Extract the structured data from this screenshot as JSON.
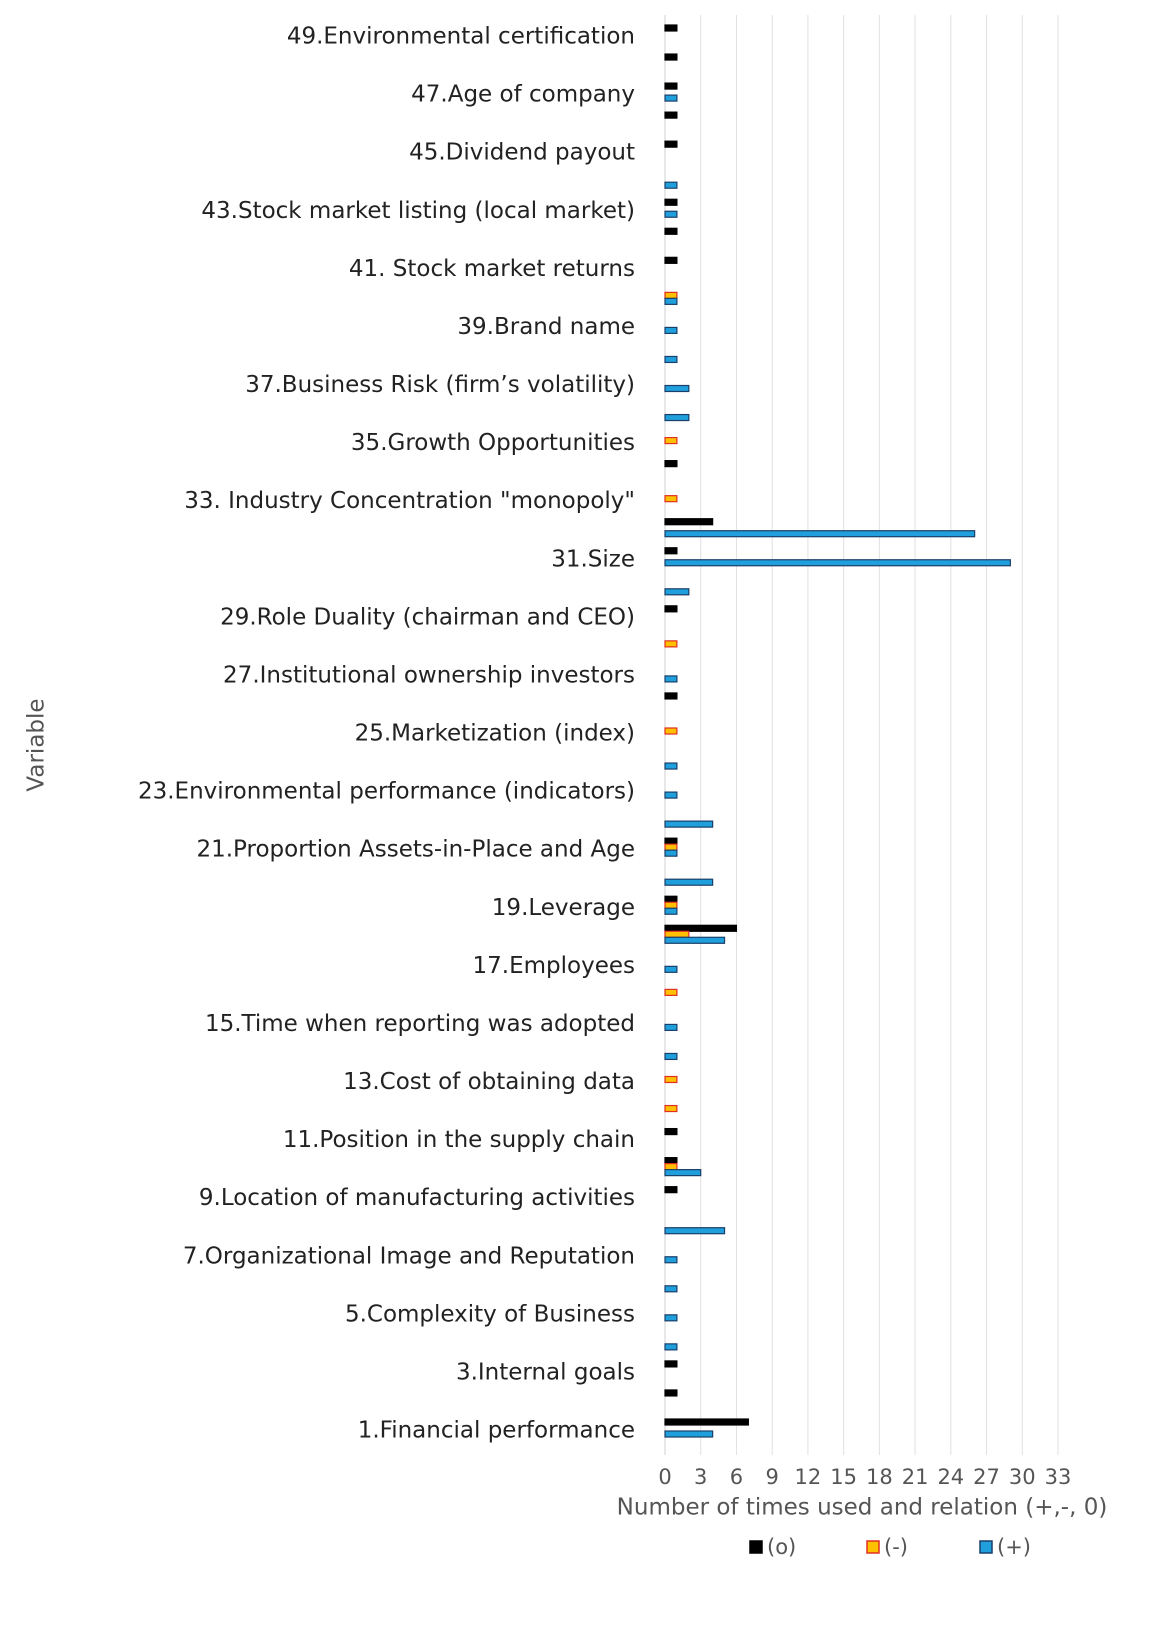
{
  "chart_data": {
    "type": "barh",
    "ylabel": "Variable",
    "xlabel": "Number of times used and relation (+,-, 0)",
    "categories": [
      "1.Financial performance",
      null,
      "3.Internal goals",
      null,
      "5.Complexity of Business",
      null,
      "7.Organizational Image and Reputation",
      null,
      "9.Location of manufacturing activities",
      null,
      "11.Position in the supply chain",
      null,
      "13.Cost of obtaining data",
      null,
      "15.Time when reporting was adopted",
      null,
      "17.Employees",
      null,
      "19.Leverage",
      null,
      "21.Proportion Assets-in-Place and  Age",
      null,
      "23.Environmental performance (indicators)",
      null,
      "25.Marketization (index)",
      null,
      "27.Institutional ownership investors",
      null,
      "29.Role Duality (chairman and CEO)",
      null,
      "31.Size",
      null,
      "33. Industry Concentration \"monopoly\"",
      null,
      "35.Growth Opportunities",
      null,
      "37.Business Risk (firm’s volatility)",
      null,
      "39.Brand name",
      null,
      "41. Stock market returns",
      null,
      "43.Stock market listing (local market)",
      null,
      "45.Dividend payout",
      null,
      "47.Age of company",
      null,
      "49.Environmental certification"
    ],
    "series": [
      {
        "name": "(o)",
        "color": "#000000",
        "values": [
          7,
          1,
          1,
          0,
          0,
          0,
          0,
          0,
          1,
          1,
          1,
          0,
          0,
          0,
          0,
          0,
          0,
          6,
          1,
          0,
          1,
          0,
          0,
          0,
          0,
          1,
          0,
          0,
          1,
          0,
          1,
          4,
          0,
          1,
          0,
          0,
          0,
          0,
          0,
          0,
          1,
          1,
          1,
          0,
          1,
          1,
          1,
          1,
          1
        ]
      },
      {
        "name": "(-)",
        "color": "#ffc000",
        "values": [
          0,
          0,
          0,
          0,
          0,
          0,
          0,
          0,
          0,
          1,
          0,
          1,
          1,
          0,
          0,
          1,
          0,
          2,
          1,
          0,
          1,
          0,
          0,
          0,
          1,
          0,
          0,
          1,
          0,
          0,
          0,
          0,
          1,
          0,
          1,
          0,
          0,
          0,
          0,
          1,
          0,
          0,
          0,
          0,
          0,
          0,
          0,
          0,
          0
        ]
      },
      {
        "name": "(+)",
        "color": "#1f9fdb",
        "values": [
          4,
          0,
          0,
          1,
          1,
          1,
          1,
          5,
          0,
          3,
          0,
          0,
          0,
          1,
          1,
          0,
          1,
          5,
          1,
          4,
          1,
          4,
          1,
          1,
          0,
          0,
          1,
          0,
          0,
          2,
          29,
          26,
          0,
          0,
          0,
          2,
          2,
          1,
          1,
          1,
          0,
          0,
          1,
          1,
          0,
          0,
          1,
          0,
          0
        ]
      }
    ],
    "xlim": [
      0,
      33
    ],
    "xticks": [
      0,
      3,
      6,
      9,
      12,
      15,
      18,
      21,
      24,
      27,
      30,
      33
    ],
    "grid": true,
    "legend": "bottom"
  }
}
